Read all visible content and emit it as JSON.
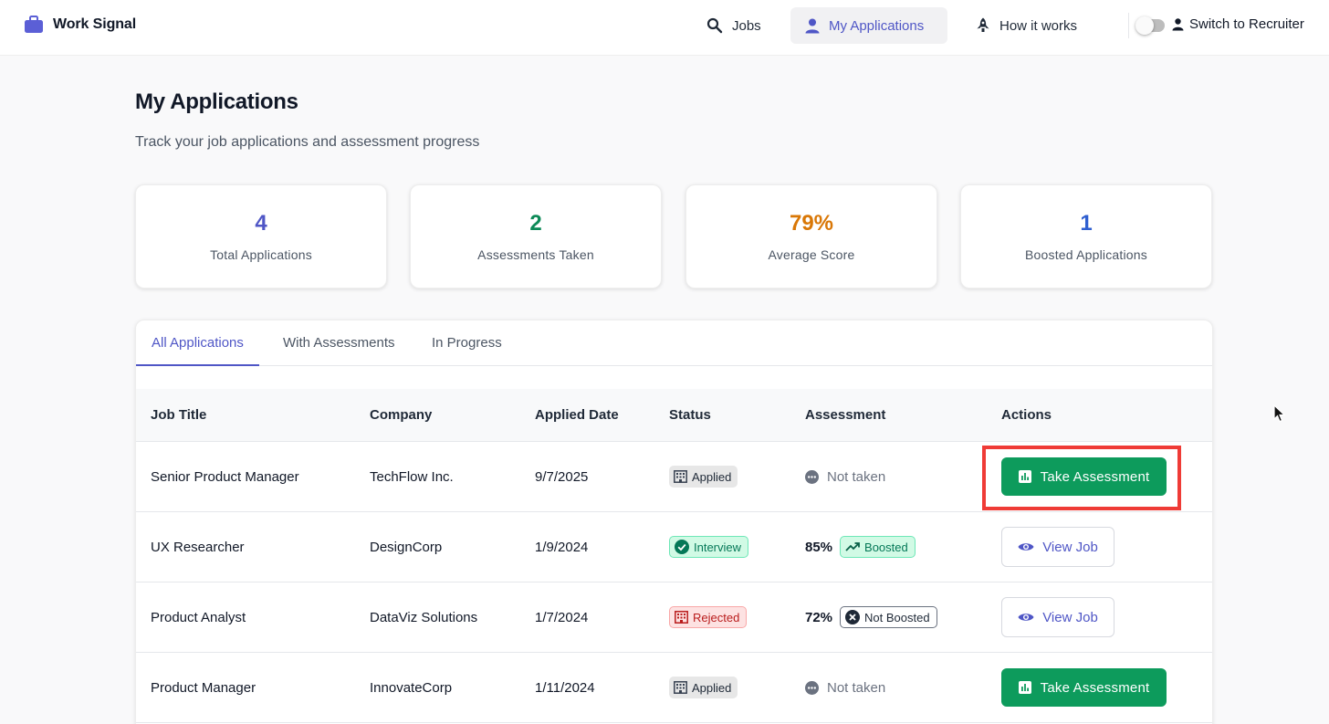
{
  "nav": {
    "brand": "Work Signal",
    "items": [
      {
        "label": "Jobs",
        "icon": "search-icon"
      },
      {
        "label": "My Applications",
        "icon": "person-icon",
        "active": true
      },
      {
        "label": "How it works",
        "icon": "rocket-icon"
      }
    ],
    "recruiter_label": "Switch to Recruiter"
  },
  "page": {
    "title": "My Applications",
    "subtitle": "Track your job applications and assessment progress"
  },
  "stats": [
    {
      "value": "4",
      "label": "Total Applications",
      "color": "#4f56c6"
    },
    {
      "value": "2",
      "label": "Assessments Taken",
      "color": "#0d8a57"
    },
    {
      "value": "79%",
      "label": "Average Score",
      "color": "#d97706"
    },
    {
      "value": "1",
      "label": "Boosted Applications",
      "color": "#2f5fd0"
    }
  ],
  "tabs": [
    "All Applications",
    "With Assessments",
    "In Progress"
  ],
  "table": {
    "headers": [
      "Job Title",
      "Company",
      "Applied Date",
      "Status",
      "Assessment",
      "Actions"
    ],
    "rows": [
      {
        "title": "Senior Product Manager",
        "company": "TechFlow Inc.",
        "date": "9/7/2025",
        "status": "Applied",
        "assessment": "Not taken",
        "action": "Take Assessment"
      },
      {
        "title": "UX Researcher",
        "company": "DesignCorp",
        "date": "1/9/2024",
        "status": "Interview",
        "score": "85%",
        "boost": "Boosted",
        "action": "View Job"
      },
      {
        "title": "Product Analyst",
        "company": "DataViz Solutions",
        "date": "1/7/2024",
        "status": "Rejected",
        "score": "72%",
        "boost": "Not Boosted",
        "action": "View Job"
      },
      {
        "title": "Product Manager",
        "company": "InnovateCorp",
        "date": "1/11/2024",
        "status": "Applied",
        "assessment": "Not taken",
        "action": "Take Assessment"
      }
    ]
  },
  "colors": {
    "accent": "#4f56c6",
    "success": "#0d9b5c",
    "highlight": "#ef3b36"
  }
}
